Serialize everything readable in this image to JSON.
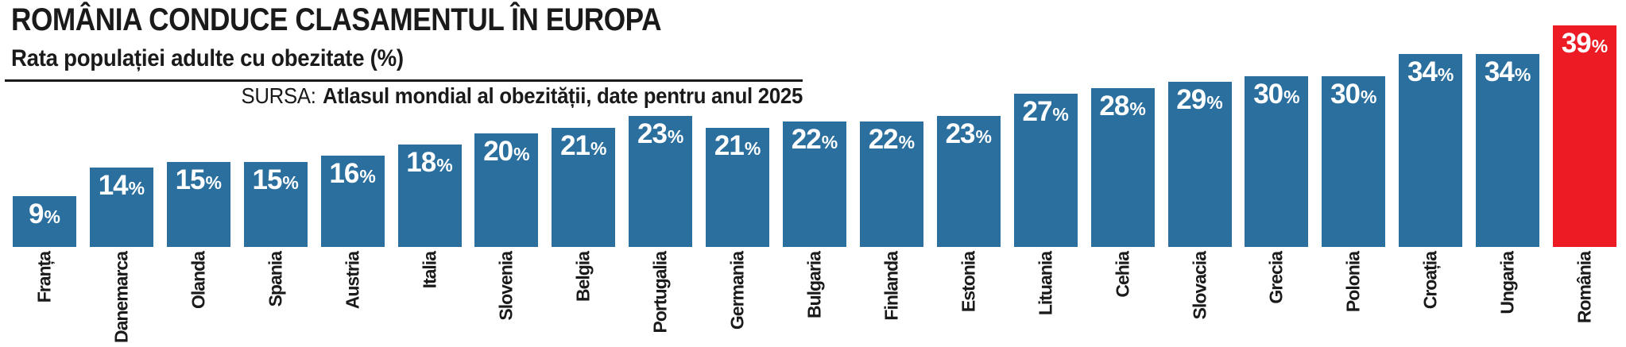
{
  "header": {
    "title": "ROMÂNIA CONDUCE CLASAMENTUL ÎN EUROPA",
    "subtitle": "Rata populației adulte cu obezitate (%)",
    "source_prefix": "SURSA:",
    "source_text": "Atlasul mondial al obezității, date pentru anul 2025"
  },
  "chart_data": {
    "type": "bar",
    "title": "ROMÂNIA CONDUCE CLASAMENTUL ÎN EUROPA",
    "subtitle": "Rata populației adulte cu obezitate (%)",
    "source": "SURSA: Atlasul mondial al obezității, date pentru anul 2025",
    "unit": "%",
    "orientation": "vertical",
    "value_labels": "inside-top",
    "category_labels": "rotated-90-below-reading-upward",
    "grid": false,
    "legend": false,
    "ylim": [
      0,
      42
    ],
    "categories": [
      "Franța",
      "Danemarca",
      "Olanda",
      "Spania",
      "Austria",
      "Italia",
      "Slovenia",
      "Belgia",
      "Portugalia",
      "Germania",
      "Bulgaria",
      "Finlanda",
      "Estonia",
      "Lituania",
      "Cehia",
      "Slovacia",
      "Grecia",
      "Polonia",
      "Croația",
      "Ungaria",
      "România"
    ],
    "values": [
      9,
      14,
      15,
      15,
      16,
      18,
      20,
      21,
      23,
      21,
      22,
      22,
      23,
      27,
      28,
      29,
      30,
      30,
      34,
      34,
      39
    ],
    "highlight_index": 20,
    "highlight_category": "România",
    "colors": {
      "bar": "#2A6F9E",
      "highlight": "#EC1B24",
      "value_label": "#FFFFFF",
      "category_label": "#1A1A1A",
      "text": "#1A1A1A",
      "background": "#FFFFFF"
    }
  }
}
